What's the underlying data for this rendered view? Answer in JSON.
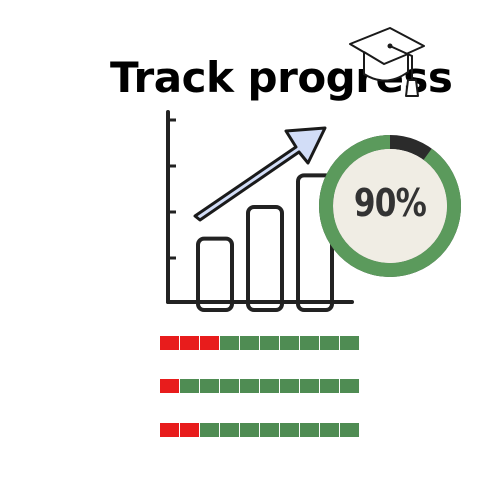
{
  "title": "Track progress",
  "ring": {
    "label": "90%",
    "value": 0.9,
    "fill_color": "#5b9a5c",
    "remainder_color": "#2b2b2b",
    "inner_color": "#f0ede4"
  },
  "icons": {
    "cap": "graduation-cap-icon",
    "arrow": "trend-arrow-icon"
  },
  "colors": {
    "bar_fill": "#ffffff",
    "outline": "#222222",
    "arrow_fill": "#d2ddf7",
    "red": "#e81c1c",
    "green": "#4f8c53"
  },
  "chart_data": {
    "type": "bar",
    "categories": [
      "",
      "",
      ""
    ],
    "values": [
      2,
      3,
      4
    ],
    "ylim": [
      0,
      6
    ],
    "title": "",
    "xlabel": "",
    "ylabel": "",
    "grid": false
  },
  "progress_bars": [
    {
      "segments": 10,
      "red": 3
    },
    {
      "segments": 10,
      "red": 1
    },
    {
      "segments": 10,
      "red": 2
    }
  ]
}
